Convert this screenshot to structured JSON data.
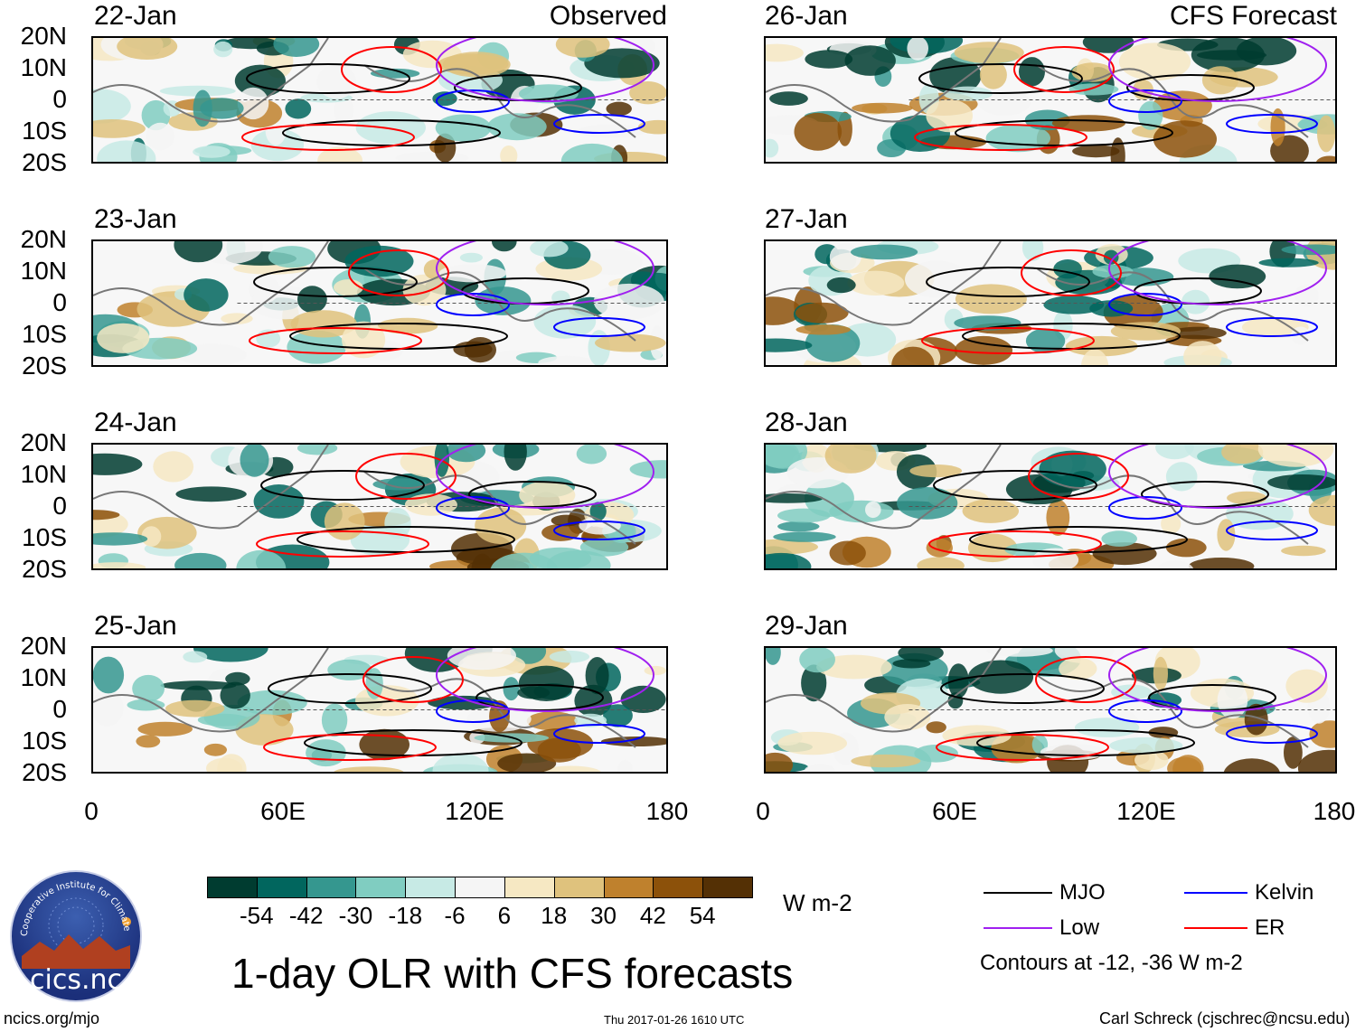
{
  "panels": {
    "left": [
      {
        "date": "22-Jan",
        "tag": "Observed"
      },
      {
        "date": "23-Jan",
        "tag": ""
      },
      {
        "date": "24-Jan",
        "tag": ""
      },
      {
        "date": "25-Jan",
        "tag": ""
      }
    ],
    "right": [
      {
        "date": "26-Jan",
        "tag": "CFS Forecast"
      },
      {
        "date": "27-Jan",
        "tag": ""
      },
      {
        "date": "28-Jan",
        "tag": ""
      },
      {
        "date": "29-Jan",
        "tag": ""
      }
    ]
  },
  "axes": {
    "lat_labels": [
      "20N",
      "10N",
      "0",
      "10S",
      "20S"
    ],
    "lon_labels": [
      "0",
      "60E",
      "120E",
      "180"
    ]
  },
  "colorbar": {
    "labels": [
      "-54",
      "-42",
      "-30",
      "-18",
      "-6",
      "6",
      "18",
      "30",
      "42",
      "54"
    ],
    "colors": [
      "#003c30",
      "#01665e",
      "#35978f",
      "#80cdc1",
      "#c7eae5",
      "#f5f5f5",
      "#f6e8c3",
      "#dfc27d",
      "#bf812d",
      "#8c510a",
      "#543005"
    ],
    "unit": "W m-2"
  },
  "title": "1-day OLR with CFS forecasts",
  "legend": {
    "items": [
      {
        "label": "MJO",
        "color": "#000000"
      },
      {
        "label": "Kelvin",
        "color": "#0000ff"
      },
      {
        "label": "Low",
        "color": "#a020f0"
      },
      {
        "label": "ER",
        "color": "#ff0000"
      }
    ],
    "note": "Contours at -12, -36 W m-2"
  },
  "logo": {
    "text": "cics.nc",
    "ring_text": "Cooperative Institute for Climate and Satellites"
  },
  "footer": {
    "left": "ncics.org/mjo",
    "center": "Thu 2017-01-26 1610 UTC",
    "right": "Carl Schreck (cjschrec@ncsu.edu)"
  }
}
